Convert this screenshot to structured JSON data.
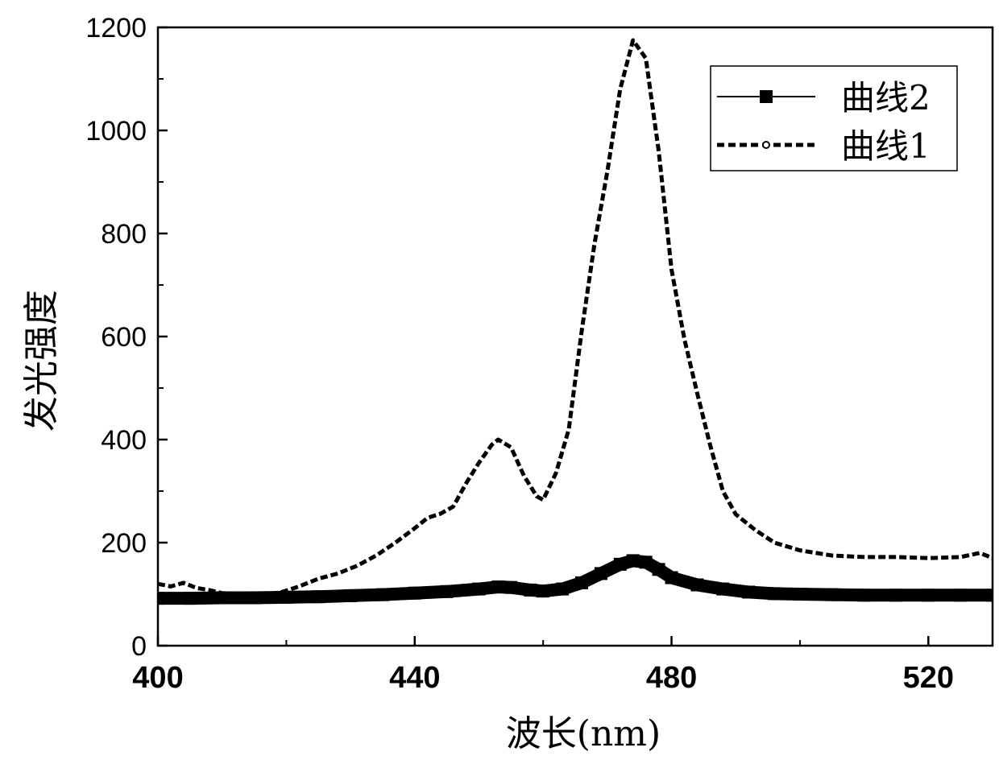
{
  "chart_data": {
    "type": "line",
    "xlabel": "波长(nm)",
    "ylabel": "发光强度",
    "xlim": [
      400,
      530
    ],
    "ylim": [
      0,
      1200
    ],
    "x_ticks": [
      400,
      440,
      480,
      520
    ],
    "y_ticks": [
      0,
      200,
      400,
      600,
      800,
      1000,
      1200
    ],
    "grid": false,
    "legend_position": "top-right",
    "series": [
      {
        "name": "曲线2",
        "style": "solid-square-markers",
        "color": "#000000",
        "x": [
          400,
          405,
          410,
          415,
          420,
          425,
          430,
          435,
          440,
          445,
          450,
          453,
          455,
          458,
          460,
          463,
          466,
          469,
          472,
          474,
          476,
          478,
          480,
          484,
          488,
          492,
          496,
          500,
          505,
          510,
          515,
          520,
          525,
          530
        ],
        "y": [
          92,
          92,
          93,
          93,
          94,
          95,
          97,
          99,
          102,
          105,
          110,
          114,
          113,
          108,
          106,
          110,
          122,
          140,
          158,
          165,
          162,
          148,
          132,
          118,
          110,
          104,
          101,
          100,
          99,
          98,
          98,
          98,
          98,
          98
        ]
      },
      {
        "name": "曲线1",
        "style": "dotted",
        "color": "#000000",
        "x": [
          400,
          402,
          404,
          406,
          408,
          410,
          413,
          416,
          419,
          422,
          425,
          428,
          431,
          434,
          437,
          440,
          442,
          444,
          446,
          448,
          450,
          452,
          453,
          455,
          457,
          459,
          460,
          462,
          464,
          466,
          468,
          470,
          472,
          474,
          476,
          478,
          480,
          482,
          484,
          486,
          488,
          490,
          493,
          496,
          500,
          505,
          510,
          515,
          520,
          525,
          528,
          530
        ],
        "y": [
          120,
          115,
          122,
          112,
          108,
          102,
          100,
          99,
          103,
          115,
          130,
          140,
          155,
          175,
          200,
          228,
          248,
          256,
          270,
          315,
          355,
          390,
          400,
          385,
          330,
          290,
          283,
          335,
          420,
          610,
          780,
          920,
          1080,
          1175,
          1140,
          960,
          730,
          595,
          490,
          390,
          300,
          255,
          225,
          200,
          185,
          175,
          172,
          172,
          170,
          172,
          180,
          170
        ]
      }
    ]
  }
}
